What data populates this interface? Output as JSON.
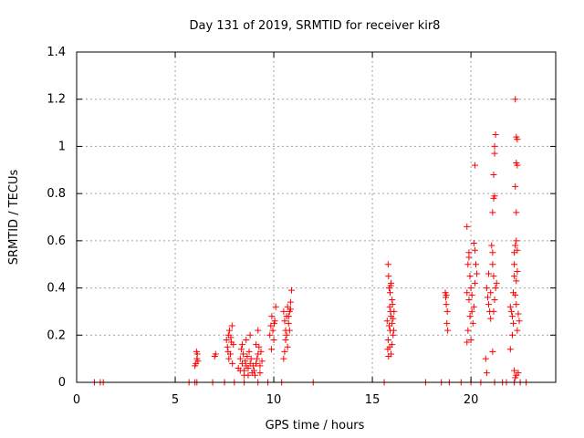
{
  "chart_data": {
    "type": "scatter",
    "title": "Day 131 of 2019, SRMTID for receiver kir8",
    "xlabel": "GPS time / hours",
    "ylabel": "SRMTID / TECUs",
    "xlim": [
      0,
      24.3
    ],
    "ylim": [
      0,
      1.4
    ],
    "xticks": [
      0,
      5,
      10,
      15,
      20
    ],
    "xtick_labels": [
      "0",
      "5",
      "10",
      "15",
      "20"
    ],
    "yticks": [
      0,
      0.2,
      0.4,
      0.6,
      0.8,
      1.0,
      1.2,
      1.4
    ],
    "ytick_labels": [
      "0",
      "0.2",
      "0.4",
      "0.6",
      "0.8",
      "1",
      "1.2",
      "1.4"
    ],
    "grid": true,
    "marker": "+",
    "color": "#ff0000",
    "series": [
      {
        "name": "SRMTID",
        "points": [
          [
            0.9,
            0
          ],
          [
            1.2,
            0
          ],
          [
            1.35,
            0
          ],
          [
            5.7,
            0
          ],
          [
            6.0,
            0
          ],
          [
            6.1,
            0
          ],
          [
            6.9,
            0
          ],
          [
            7.5,
            0
          ],
          [
            8.0,
            0
          ],
          [
            8.5,
            0
          ],
          [
            9.2,
            0
          ],
          [
            9.7,
            0
          ],
          [
            10.4,
            0
          ],
          [
            12.0,
            0
          ],
          [
            15.6,
            0
          ],
          [
            17.7,
            0
          ],
          [
            18.5,
            0
          ],
          [
            18.9,
            0
          ],
          [
            19.5,
            0
          ],
          [
            20.0,
            0
          ],
          [
            20.5,
            0
          ],
          [
            21.2,
            0
          ],
          [
            21.6,
            0
          ],
          [
            21.8,
            0
          ],
          [
            22.2,
            0
          ],
          [
            22.5,
            0
          ],
          [
            22.8,
            0
          ],
          [
            6.05,
            0.08
          ],
          [
            6.1,
            0.1
          ],
          [
            6.12,
            0.12
          ],
          [
            6.15,
            0.09
          ],
          [
            6.0,
            0.07
          ],
          [
            6.08,
            0.13
          ],
          [
            7.0,
            0.11
          ],
          [
            7.05,
            0.12
          ],
          [
            7.6,
            0.18
          ],
          [
            7.65,
            0.15
          ],
          [
            7.7,
            0.2
          ],
          [
            7.75,
            0.22
          ],
          [
            7.8,
            0.12
          ],
          [
            7.85,
            0.17
          ],
          [
            7.9,
            0.08
          ],
          [
            7.72,
            0.1
          ],
          [
            7.68,
            0.13
          ],
          [
            7.82,
            0.19
          ],
          [
            7.88,
            0.24
          ],
          [
            7.95,
            0.16
          ],
          [
            8.2,
            0.06
          ],
          [
            8.3,
            0.1
          ],
          [
            8.35,
            0.14
          ],
          [
            8.4,
            0.08
          ],
          [
            8.45,
            0.12
          ],
          [
            8.5,
            0.05
          ],
          [
            8.55,
            0.09
          ],
          [
            8.6,
            0.07
          ],
          [
            8.65,
            0.11
          ],
          [
            8.7,
            0.06
          ],
          [
            8.75,
            0.13
          ],
          [
            8.8,
            0.08
          ],
          [
            8.85,
            0.1
          ],
          [
            8.9,
            0.04
          ],
          [
            8.95,
            0.07
          ],
          [
            8.4,
            0.16
          ],
          [
            8.6,
            0.18
          ],
          [
            8.8,
            0.2
          ],
          [
            8.5,
            0.03
          ],
          [
            8.7,
            0.03
          ],
          [
            8.3,
            0.05
          ],
          [
            9.0,
            0.05
          ],
          [
            9.1,
            0.08
          ],
          [
            9.15,
            0.1
          ],
          [
            9.2,
            0.12
          ],
          [
            9.25,
            0.15
          ],
          [
            9.3,
            0.07
          ],
          [
            9.35,
            0.13
          ],
          [
            9.4,
            0.09
          ],
          [
            9.2,
            0.22
          ],
          [
            9.1,
            0.16
          ],
          [
            9.05,
            0.03
          ],
          [
            9.3,
            0.04
          ],
          [
            9.8,
            0.2
          ],
          [
            9.85,
            0.24
          ],
          [
            9.9,
            0.28
          ],
          [
            9.95,
            0.22
          ],
          [
            10.0,
            0.18
          ],
          [
            10.05,
            0.26
          ],
          [
            10.1,
            0.32
          ],
          [
            9.88,
            0.14
          ],
          [
            10.02,
            0.25
          ],
          [
            10.5,
            0.3
          ],
          [
            10.55,
            0.26
          ],
          [
            10.6,
            0.22
          ],
          [
            10.65,
            0.28
          ],
          [
            10.7,
            0.32
          ],
          [
            10.75,
            0.25
          ],
          [
            10.8,
            0.3
          ],
          [
            10.85,
            0.34
          ],
          [
            10.9,
            0.39
          ],
          [
            10.6,
            0.18
          ],
          [
            10.7,
            0.15
          ],
          [
            10.5,
            0.1
          ],
          [
            10.65,
            0.2
          ],
          [
            10.8,
            0.22
          ],
          [
            10.55,
            0.13
          ],
          [
            10.75,
            0.28
          ],
          [
            10.85,
            0.31
          ],
          [
            15.8,
            0.5
          ],
          [
            15.82,
            0.45
          ],
          [
            15.85,
            0.4
          ],
          [
            15.9,
            0.38
          ],
          [
            15.95,
            0.42
          ],
          [
            16.0,
            0.35
          ],
          [
            15.88,
            0.32
          ],
          [
            15.92,
            0.3
          ],
          [
            15.95,
            0.28
          ],
          [
            16.0,
            0.25
          ],
          [
            15.85,
            0.24
          ],
          [
            15.9,
            0.22
          ],
          [
            16.05,
            0.2
          ],
          [
            15.8,
            0.18
          ],
          [
            15.88,
            0.15
          ],
          [
            15.95,
            0.12
          ],
          [
            16.0,
            0.16
          ],
          [
            16.08,
            0.22
          ],
          [
            15.78,
            0.14
          ],
          [
            15.82,
            0.11
          ],
          [
            16.05,
            0.27
          ],
          [
            15.75,
            0.26
          ],
          [
            16.1,
            0.3
          ],
          [
            16.02,
            0.33
          ],
          [
            15.93,
            0.41
          ],
          [
            18.7,
            0.38
          ],
          [
            18.72,
            0.36
          ],
          [
            18.75,
            0.33
          ],
          [
            18.8,
            0.3
          ],
          [
            18.78,
            0.25
          ],
          [
            18.82,
            0.22
          ],
          [
            18.75,
            0.37
          ],
          [
            19.8,
            0.66
          ],
          [
            19.9,
            0.55
          ],
          [
            19.85,
            0.5
          ],
          [
            19.95,
            0.45
          ],
          [
            20.0,
            0.4
          ],
          [
            19.8,
            0.38
          ],
          [
            19.9,
            0.35
          ],
          [
            20.05,
            0.3
          ],
          [
            19.95,
            0.28
          ],
          [
            20.1,
            0.25
          ],
          [
            19.85,
            0.22
          ],
          [
            19.8,
            0.17
          ],
          [
            20.0,
            0.18
          ],
          [
            20.15,
            0.32
          ],
          [
            20.2,
            0.42
          ],
          [
            20.25,
            0.5
          ],
          [
            20.2,
            0.56
          ],
          [
            20.15,
            0.59
          ],
          [
            20.2,
            0.92
          ],
          [
            20.3,
            0.46
          ],
          [
            20.05,
            0.37
          ],
          [
            19.9,
            0.53
          ],
          [
            20.8,
            0.4
          ],
          [
            20.85,
            0.36
          ],
          [
            20.9,
            0.33
          ],
          [
            20.95,
            0.3
          ],
          [
            21.0,
            0.27
          ],
          [
            20.75,
            0.1
          ],
          [
            20.8,
            0.04
          ],
          [
            21.05,
            0.58
          ],
          [
            21.1,
            0.55
          ],
          [
            21.1,
            0.5
          ],
          [
            21.15,
            0.45
          ],
          [
            21.1,
            0.72
          ],
          [
            21.15,
            0.78
          ],
          [
            21.2,
            0.79
          ],
          [
            21.15,
            0.88
          ],
          [
            21.2,
            0.97
          ],
          [
            21.2,
            1.0
          ],
          [
            21.25,
            1.05
          ],
          [
            21.2,
            0.35
          ],
          [
            21.15,
            0.3
          ],
          [
            21.1,
            0.13
          ],
          [
            21.25,
            0.4
          ],
          [
            21.3,
            0.42
          ],
          [
            20.9,
            0.46
          ],
          [
            21.0,
            0.38
          ],
          [
            22.0,
            0.32
          ],
          [
            22.05,
            0.3
          ],
          [
            22.1,
            0.28
          ],
          [
            22.15,
            0.25
          ],
          [
            22.0,
            0.14
          ],
          [
            22.1,
            0.2
          ],
          [
            22.2,
            0.5
          ],
          [
            22.2,
            0.55
          ],
          [
            22.25,
            0.58
          ],
          [
            22.3,
            0.6
          ],
          [
            22.2,
            0.45
          ],
          [
            22.3,
            0.43
          ],
          [
            22.25,
            0.37
          ],
          [
            22.3,
            0.33
          ],
          [
            22.25,
            0.83
          ],
          [
            22.3,
            0.93
          ],
          [
            22.35,
            0.92
          ],
          [
            22.3,
            1.04
          ],
          [
            22.35,
            1.03
          ],
          [
            22.25,
            1.2
          ],
          [
            22.3,
            0.72
          ],
          [
            22.35,
            0.56
          ],
          [
            22.4,
            0.29
          ],
          [
            22.45,
            0.26
          ],
          [
            22.35,
            0.22
          ],
          [
            22.2,
            0.05
          ],
          [
            22.3,
            0.03
          ],
          [
            22.4,
            0.04
          ],
          [
            22.25,
            0.02
          ],
          [
            22.15,
            0.38
          ],
          [
            22.35,
            0.47
          ]
        ]
      }
    ]
  }
}
